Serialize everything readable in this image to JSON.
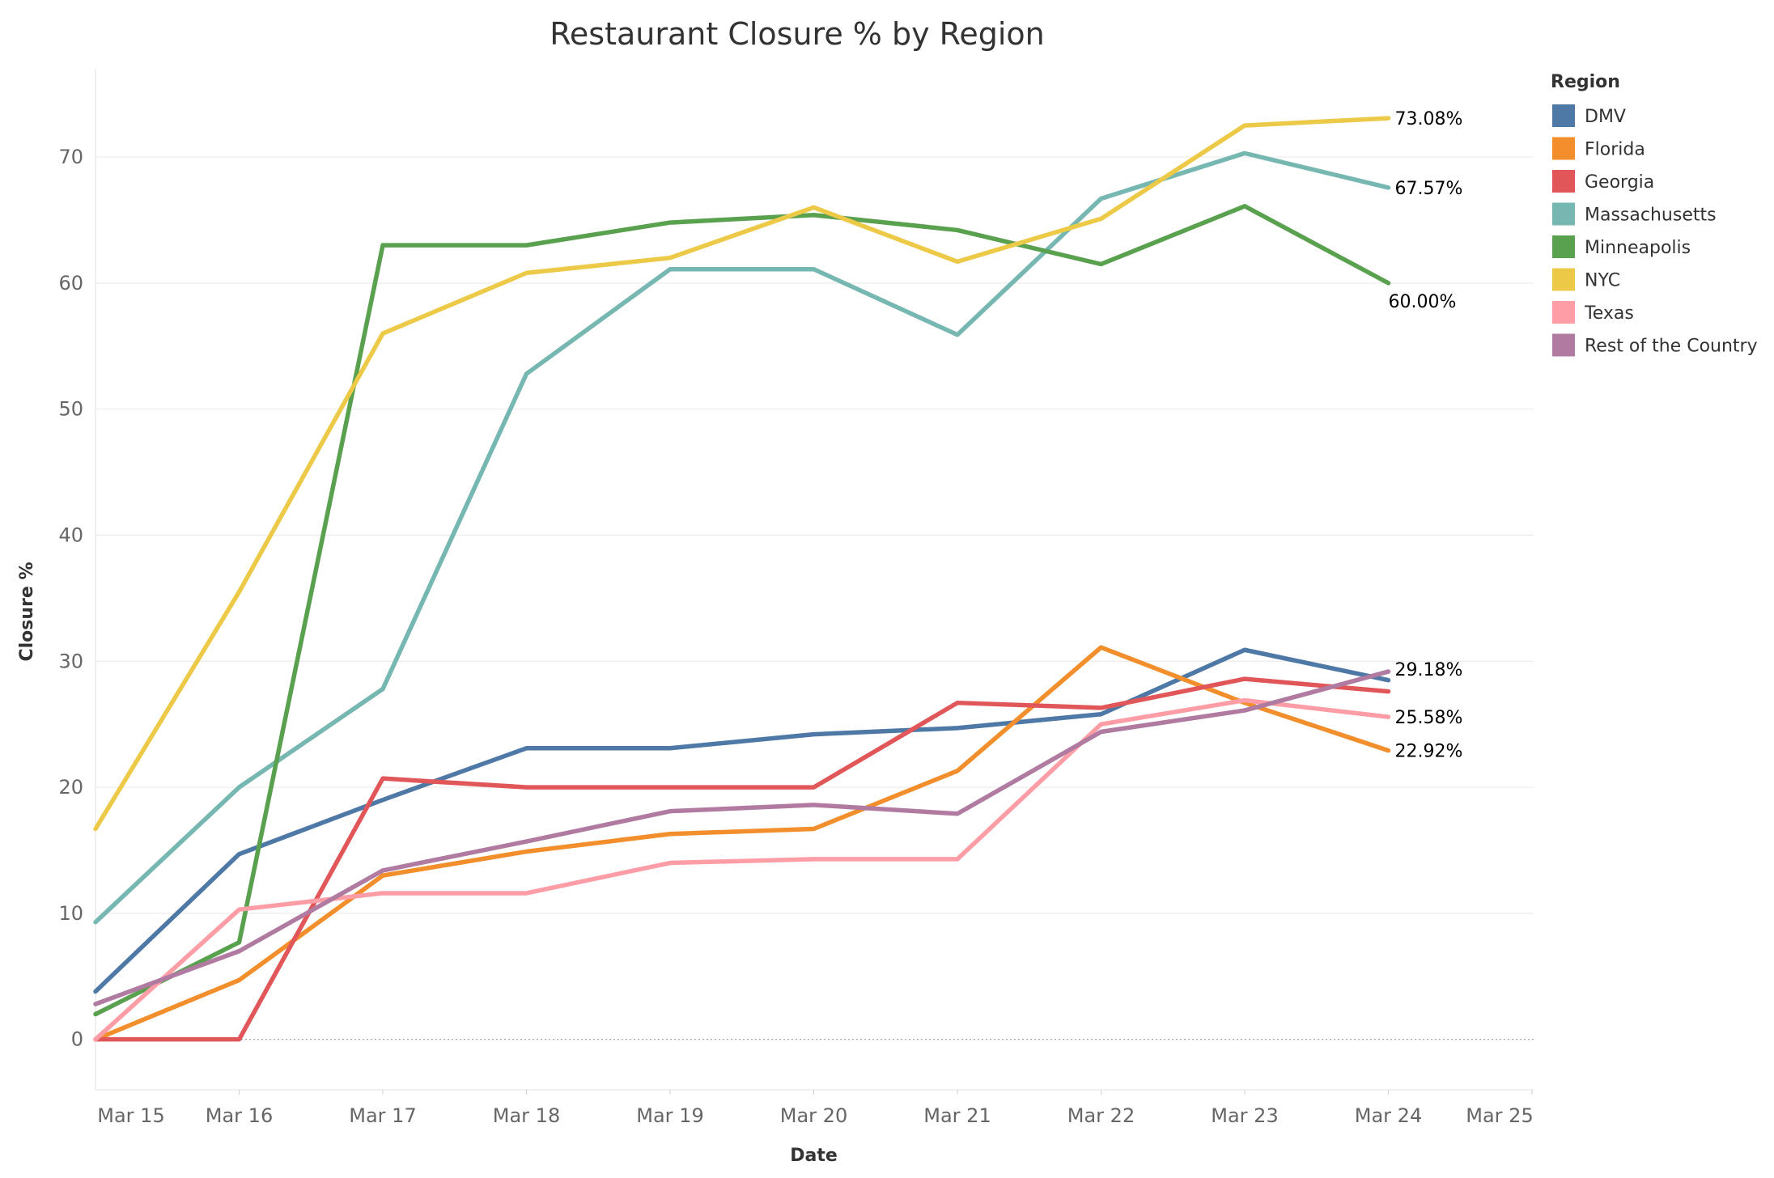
{
  "chart_data": {
    "type": "line",
    "title": "Restaurant Closure % by Region",
    "xlabel": "Date",
    "ylabel": "Closure %",
    "x_tick_labels": [
      "Mar 15",
      "Mar 16",
      "Mar 17",
      "Mar 18",
      "Mar 19",
      "Mar 20",
      "Mar 21",
      "Mar 22",
      "Mar 23",
      "Mar 24",
      "Mar 25"
    ],
    "x": [
      "Mar 15",
      "Mar 16",
      "Mar 17",
      "Mar 18",
      "Mar 19",
      "Mar 20",
      "Mar 21",
      "Mar 22",
      "Mar 23",
      "Mar 24"
    ],
    "ylim": [
      -4,
      77
    ],
    "y_ticks": [
      0,
      10,
      20,
      30,
      40,
      50,
      60,
      70
    ],
    "grid": true,
    "zero_line": "dotted",
    "legend": {
      "title": "Region",
      "placement": "right"
    },
    "series": [
      {
        "name": "DMV",
        "color": "#4e79a7",
        "values": [
          3.8,
          14.7,
          19.0,
          23.1,
          23.1,
          24.2,
          24.7,
          25.8,
          30.9,
          28.5
        ]
      },
      {
        "name": "Florida",
        "color": "#f28e2b",
        "values": [
          0.0,
          4.7,
          13.0,
          14.9,
          16.3,
          16.7,
          21.3,
          31.1,
          26.7,
          22.92
        ],
        "end_label": "22.92%"
      },
      {
        "name": "Georgia",
        "color": "#e15759",
        "values": [
          0.0,
          0.0,
          20.7,
          20.0,
          20.0,
          20.0,
          26.7,
          26.3,
          28.6,
          27.6
        ]
      },
      {
        "name": "Massachusetts",
        "color": "#76b7b2",
        "values": [
          9.3,
          20.0,
          27.8,
          52.8,
          61.1,
          61.1,
          55.9,
          66.7,
          70.3,
          67.57
        ],
        "end_label": "67.57%"
      },
      {
        "name": "Minneapolis",
        "color": "#59a14f",
        "values": [
          2.0,
          7.7,
          63.0,
          63.0,
          64.8,
          65.4,
          64.2,
          61.5,
          66.1,
          60.0
        ],
        "end_label": "60.00%"
      },
      {
        "name": "NYC",
        "color": "#edc948",
        "values": [
          16.7,
          35.5,
          56.0,
          60.8,
          62.0,
          66.0,
          61.7,
          65.1,
          72.5,
          73.08
        ],
        "end_label": "73.08%"
      },
      {
        "name": "Texas",
        "color": "#ff9da7",
        "values": [
          0.0,
          10.3,
          11.6,
          11.6,
          14.0,
          14.3,
          14.3,
          25.0,
          26.9,
          25.58
        ],
        "end_label": "25.58%"
      },
      {
        "name": "Rest of the Country",
        "color": "#b07aa1",
        "values": [
          2.8,
          7.0,
          13.4,
          15.7,
          18.1,
          18.6,
          17.9,
          24.4,
          26.1,
          29.18
        ],
        "end_label": "29.18%"
      }
    ]
  }
}
